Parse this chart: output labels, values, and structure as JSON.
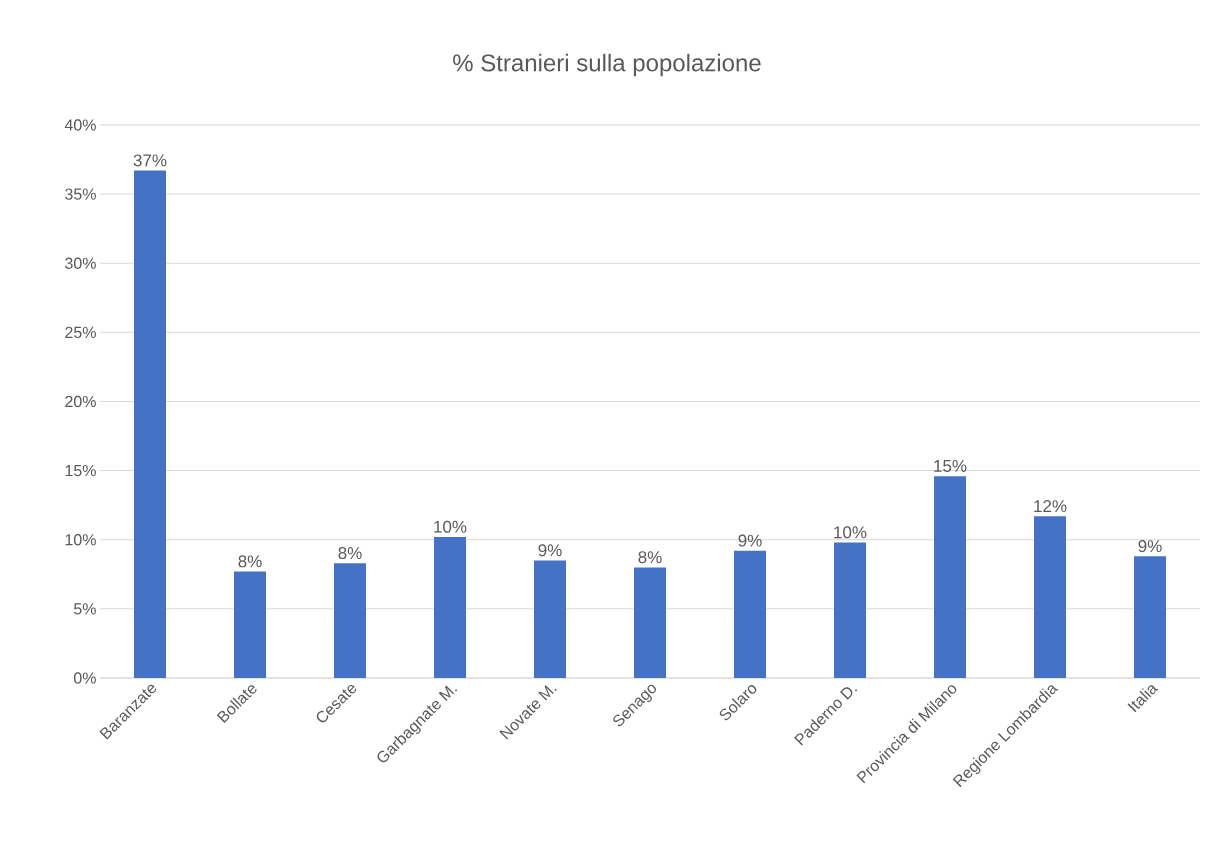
{
  "chart_data": {
    "type": "bar",
    "title": "% Stranieri sulla popolazione",
    "categories": [
      "Baranzate",
      "Bollate",
      "Cesate",
      "Garbagnate M.",
      "Novate M.",
      "Senago",
      "Solaro",
      "Paderno D.",
      "Provincia di Milano",
      "Regione Lombardia",
      "Italia"
    ],
    "values": [
      36.7,
      7.7,
      8.3,
      10.2,
      8.5,
      8.0,
      9.2,
      9.8,
      14.6,
      11.7,
      8.8
    ],
    "value_labels": [
      "37%",
      "8%",
      "8%",
      "10%",
      "9%",
      "8%",
      "9%",
      "10%",
      "15%",
      "12%",
      "9%"
    ],
    "color": "#4472c4",
    "ylim": [
      0,
      40
    ],
    "yticks": [
      {
        "value": 0,
        "label": "0%"
      },
      {
        "value": 5,
        "label": "5%"
      },
      {
        "value": 10,
        "label": "10%"
      },
      {
        "value": 15,
        "label": "15%"
      },
      {
        "value": 20,
        "label": "20%"
      },
      {
        "value": 25,
        "label": "25%"
      },
      {
        "value": 30,
        "label": "30%"
      },
      {
        "value": 35,
        "label": "35%"
      },
      {
        "value": 40,
        "label": "40%"
      }
    ],
    "grid": "y"
  }
}
